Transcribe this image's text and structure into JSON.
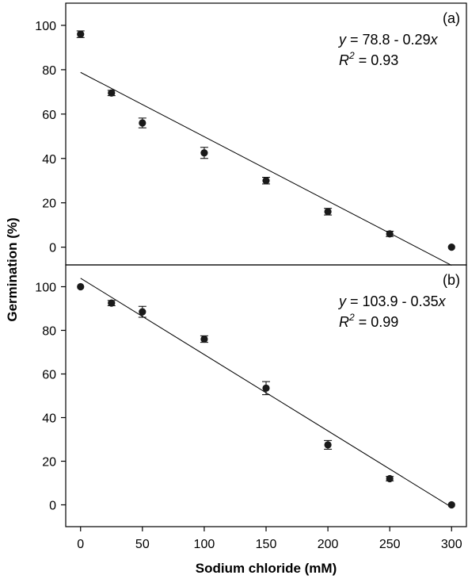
{
  "chart_data": [
    {
      "type": "scatter",
      "panel_label": "(a)",
      "x": [
        0,
        25,
        50,
        100,
        150,
        200,
        250,
        300
      ],
      "y": [
        96,
        69.5,
        56,
        42.5,
        30,
        16,
        6,
        0
      ],
      "err": [
        1.5,
        1.2,
        2.2,
        2.5,
        1.5,
        1.5,
        1.2,
        0
      ],
      "fit": {
        "intercept": 78.8,
        "slope": -0.29,
        "x_range": [
          0,
          300
        ]
      },
      "equation": {
        "y_label": "y",
        "eq_rest": " = 78.8 - 0.29",
        "x_label": "x",
        "r_label": "R",
        "r_exp": "2",
        "r_rest": " = 0.93"
      },
      "xlim": [
        -12,
        312
      ],
      "ylim": [
        -8,
        110
      ],
      "yticks": [
        0,
        20,
        40,
        60,
        80,
        100
      ]
    },
    {
      "type": "scatter",
      "panel_label": "(b)",
      "x": [
        0,
        25,
        50,
        100,
        150,
        200,
        250,
        300
      ],
      "y": [
        100,
        92.5,
        88.5,
        76,
        53.5,
        27.5,
        12,
        0
      ],
      "err": [
        0,
        1.2,
        2.5,
        1.5,
        3,
        2,
        1,
        0
      ],
      "fit": {
        "intercept": 103.9,
        "slope": -0.35,
        "x_range": [
          0,
          300
        ]
      },
      "equation": {
        "y_label": "y",
        "eq_rest": " = 103.9 - 0.35",
        "x_label": "x",
        "r_label": "R",
        "r_exp": "2",
        "r_rest": " = 0.99"
      },
      "xlim": [
        -12,
        312
      ],
      "ylim": [
        -10,
        110
      ],
      "yticks": [
        0,
        20,
        40,
        60,
        80,
        100
      ],
      "xticks": [
        0,
        50,
        100,
        150,
        200,
        250,
        300
      ]
    }
  ],
  "ylabel": "Germination (%)",
  "xlabel": "Sodium chloride (mM)",
  "colors": {
    "marker": "#1a1a1a",
    "line": "#000000",
    "axis": "#000000"
  }
}
